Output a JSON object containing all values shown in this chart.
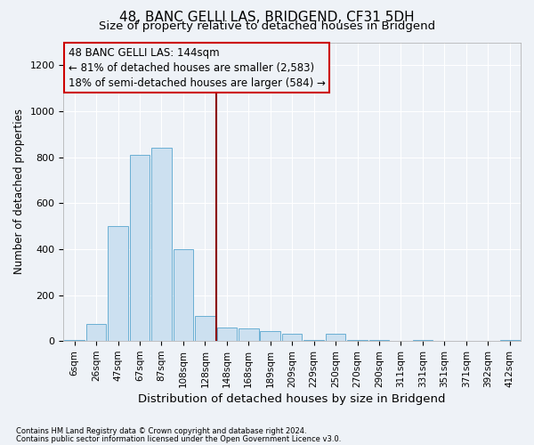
{
  "title": "48, BANC GELLI LAS, BRIDGEND, CF31 5DH",
  "subtitle": "Size of property relative to detached houses in Bridgend",
  "xlabel": "Distribution of detached houses by size in Bridgend",
  "ylabel": "Number of detached properties",
  "footer_line1": "Contains HM Land Registry data © Crown copyright and database right 2024.",
  "footer_line2": "Contains public sector information licensed under the Open Government Licence v3.0.",
  "bar_labels": [
    "6sqm",
    "26sqm",
    "47sqm",
    "67sqm",
    "87sqm",
    "108sqm",
    "128sqm",
    "148sqm",
    "168sqm",
    "189sqm",
    "209sqm",
    "229sqm",
    "250sqm",
    "270sqm",
    "290sqm",
    "311sqm",
    "331sqm",
    "351sqm",
    "371sqm",
    "392sqm",
    "412sqm"
  ],
  "bar_values": [
    6,
    75,
    500,
    810,
    840,
    400,
    110,
    60,
    55,
    45,
    30,
    5,
    30,
    5,
    5,
    0,
    5,
    0,
    0,
    0,
    5
  ],
  "bar_color": "#cce0f0",
  "bar_edgecolor": "#6aafd4",
  "ylim": [
    0,
    1300
  ],
  "yticks": [
    0,
    200,
    400,
    600,
    800,
    1000,
    1200
  ],
  "vline_index": 7,
  "vline_color": "#8b0000",
  "annotation_text": "48 BANC GELLI LAS: 144sqm\n← 81% of detached houses are smaller (2,583)\n18% of semi-detached houses are larger (584) →",
  "annotation_box_color": "#cc0000",
  "background_color": "#eef2f7",
  "grid_color": "#ffffff",
  "title_fontsize": 11,
  "subtitle_fontsize": 9.5,
  "annotation_fontsize": 8.5,
  "ylabel_fontsize": 8.5,
  "xlabel_fontsize": 9.5,
  "tick_fontsize": 7.5,
  "footer_fontsize": 6.0
}
